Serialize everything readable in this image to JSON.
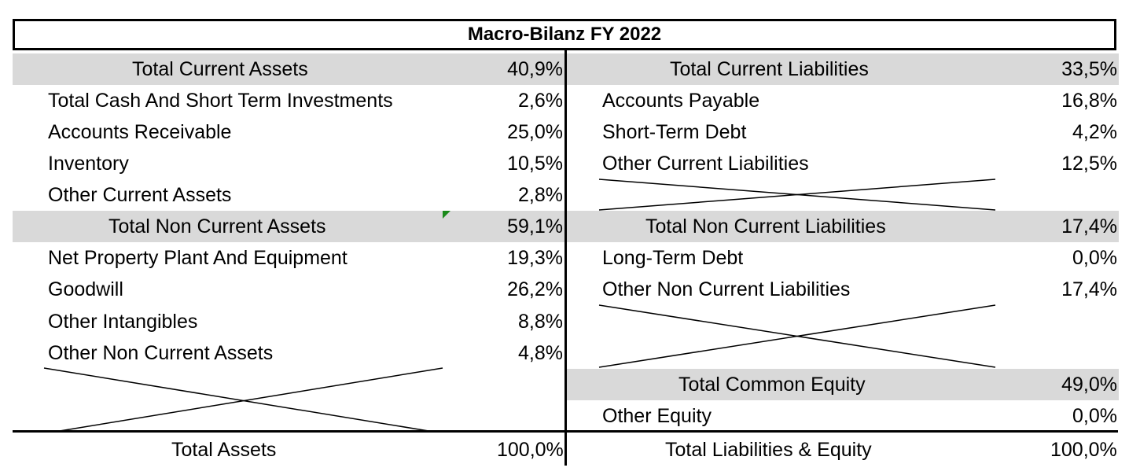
{
  "title": "Macro-Bilanz FY 2022",
  "assets": {
    "current_header": {
      "label": "Total Current Assets",
      "value": "40,9%"
    },
    "current_items": [
      {
        "label": "Total Cash And Short Term Investments",
        "value": "2,6%"
      },
      {
        "label": "Accounts Receivable",
        "value": "25,0%"
      },
      {
        "label": "Inventory",
        "value": "10,5%"
      },
      {
        "label": "Other Current Assets",
        "value": "2,8%"
      }
    ],
    "noncurrent_header": {
      "label": "Total Non Current Assets",
      "value": "59,1%"
    },
    "noncurrent_items": [
      {
        "label": "Net Property Plant And Equipment",
        "value": "19,3%"
      },
      {
        "label": "Goodwill",
        "value": "26,2%"
      },
      {
        "label": "Other Intangibles",
        "value": "8,8%"
      },
      {
        "label": "Other Non Current Assets",
        "value": "4,8%"
      }
    ],
    "total": {
      "label": "Total Assets",
      "value": "100,0%"
    }
  },
  "liabilities": {
    "current_header": {
      "label": "Total Current Liabilities",
      "value": "33,5%"
    },
    "current_items": [
      {
        "label": "Accounts Payable",
        "value": "16,8%"
      },
      {
        "label": "Short-Term Debt",
        "value": "4,2%"
      },
      {
        "label": "Other Current Liabilities",
        "value": "12,5%"
      }
    ],
    "noncurrent_header": {
      "label": "Total Non Current Liabilities",
      "value": "17,4%"
    },
    "noncurrent_items": [
      {
        "label": "Long-Term Debt",
        "value": "0,0%"
      },
      {
        "label": "Other Non Current Liabilities",
        "value": "17,4%"
      }
    ],
    "equity_header": {
      "label": "Total Common Equity",
      "value": "49,0%"
    },
    "equity_items": [
      {
        "label": "Other Equity",
        "value": "0,0%"
      }
    ],
    "total": {
      "label": "Total Liabilities & Equity",
      "value": "100,0%"
    }
  },
  "colors": {
    "header_fill": "#d9d9d9",
    "marker": "#1a8a1a"
  }
}
